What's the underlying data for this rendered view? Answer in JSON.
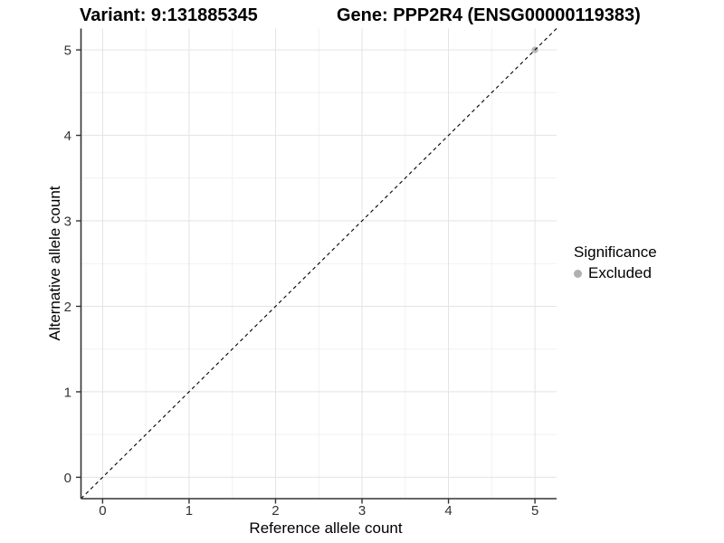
{
  "header": {
    "variant_title": "Variant: 9:131885345",
    "gene_title": "Gene: PPP2R4 (ENSG00000119383)"
  },
  "chart_data": {
    "type": "scatter",
    "xlabel": "Reference allele count",
    "ylabel": "Alternative allele count",
    "xlim": [
      -0.25,
      5.25
    ],
    "ylim": [
      -0.25,
      5.25
    ],
    "xticks": [
      0,
      1,
      2,
      3,
      4,
      5
    ],
    "yticks": [
      0,
      1,
      2,
      3,
      4,
      5
    ],
    "xticks_minor": [
      0.5,
      1.5,
      2.5,
      3.5,
      4.5
    ],
    "yticks_minor": [
      0.5,
      1.5,
      2.5,
      3.5,
      4.5
    ],
    "grid": true,
    "legend_position": "right",
    "points": [
      {
        "x": 5,
        "y": 5,
        "significance": "Excluded"
      }
    ],
    "abline": {
      "slope": 1,
      "intercept": 0,
      "style": "dashed"
    },
    "legend": {
      "title": "Significance",
      "items": [
        {
          "label": "Excluded",
          "color": "#b0b0b0"
        }
      ]
    },
    "colors": {
      "background": "#ffffff",
      "grid_major": "#e3e3e3",
      "grid_minor": "#f1f1f1",
      "axis_line": "#333333",
      "tick_mark": "#333333",
      "tick_label": "#333333",
      "point": "#b8b8b8",
      "abline": "#000000"
    }
  }
}
